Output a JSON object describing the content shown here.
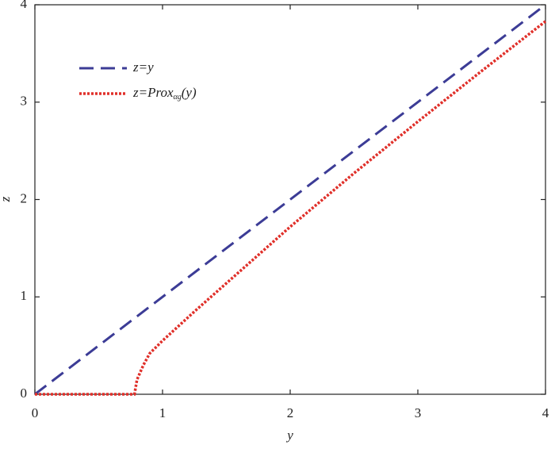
{
  "chart_data": {
    "type": "line",
    "xlabel": "y",
    "ylabel": "z",
    "xlim": [
      0,
      4
    ],
    "ylim": [
      0,
      4
    ],
    "xticks": [
      0,
      1,
      2,
      3,
      4
    ],
    "yticks": [
      0,
      1,
      2,
      3,
      4
    ],
    "legend": "upper left",
    "series": [
      {
        "name": "z=y",
        "color": "#3c3c96",
        "style": "dashed",
        "x": [
          0,
          4
        ],
        "values": [
          0,
          4
        ]
      },
      {
        "name": "z=Proxαg(y)",
        "name_subscript": "αg",
        "color": "#e0302a",
        "style": "dotted",
        "x": [
          0,
          0.78,
          0.8,
          0.85,
          0.9,
          1.0,
          1.25,
          1.5,
          2,
          2.5,
          3,
          3.5,
          4
        ],
        "values": [
          0,
          0,
          0.15,
          0.3,
          0.42,
          0.55,
          0.85,
          1.14,
          1.72,
          2.27,
          2.8,
          3.32,
          3.83
        ]
      }
    ]
  }
}
